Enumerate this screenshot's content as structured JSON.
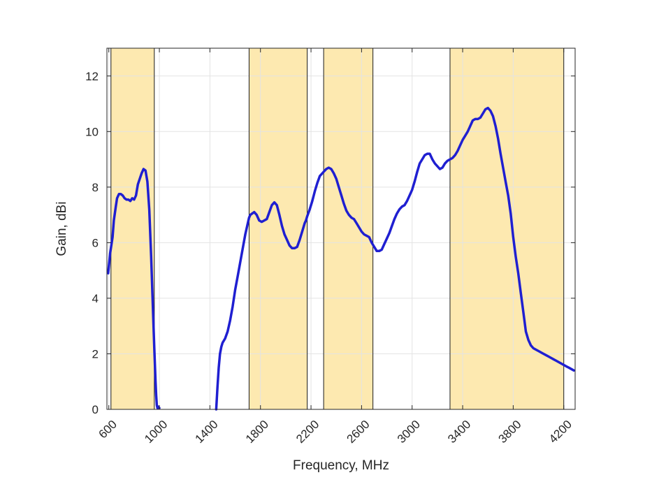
{
  "chart_data": {
    "type": "line",
    "title": "",
    "xlabel": "Frequency, MHz",
    "ylabel": "Gain, dBi",
    "xlim": [
      585,
      4290
    ],
    "ylim": [
      0,
      13
    ],
    "grid": true,
    "x_ticks": [
      600,
      1000,
      1400,
      1800,
      2200,
      2600,
      3000,
      3400,
      3800,
      4200
    ],
    "x_tick_labels": [
      "600",
      "1000",
      "1400",
      "1800",
      "2200",
      "2600",
      "3000",
      "3400",
      "3800",
      "4200"
    ],
    "y_ticks": [
      0,
      2,
      4,
      6,
      8,
      10,
      12
    ],
    "y_tick_labels": [
      "0",
      "2",
      "4",
      "6",
      "8",
      "10",
      "12"
    ],
    "colors": {
      "line": "#1f1fd1",
      "band_fill": "#fde9b0",
      "band_edge": "#1a1a1a",
      "grid": "#e3e3e3",
      "axis": "#262626"
    },
    "bands": [
      {
        "start": 617,
        "end": 960
      },
      {
        "start": 1710,
        "end": 2170
      },
      {
        "start": 2300,
        "end": 2690
      },
      {
        "start": 3300,
        "end": 4200
      }
    ],
    "series": [
      {
        "segments": [
          {
            "x": [
              595,
              610,
              620,
              630,
              640,
              655,
              665,
              680,
              695,
              710,
              725,
              740,
              755,
              770,
              785,
              800,
              815,
              830,
              845,
              860,
              875,
              890,
              905,
              920,
              935,
              950,
              960,
              970,
              975,
              980,
              985,
              990,
              995,
              1000
            ],
            "y": [
              4.9,
              5.6,
              5.9,
              6.2,
              6.8,
              7.3,
              7.6,
              7.75,
              7.75,
              7.7,
              7.6,
              7.55,
              7.55,
              7.5,
              7.6,
              7.55,
              7.7,
              8.1,
              8.3,
              8.5,
              8.65,
              8.6,
              8.2,
              7.2,
              5.5,
              3.5,
              2.2,
              1.0,
              0.5,
              0.15,
              0.05,
              0.1,
              0.05,
              0.05
            ]
          },
          {
            "x": [
              1450,
              1460,
              1470,
              1480,
              1490,
              1500,
              1520,
              1540,
              1560,
              1580,
              1600,
              1620,
              1640,
              1660,
              1680,
              1690,
              1700,
              1710,
              1720,
              1735,
              1750,
              1770,
              1790,
              1810,
              1830,
              1850,
              1870,
              1890,
              1910,
              1930,
              1950,
              1970,
              1990,
              2010,
              2030,
              2050,
              2070,
              2090,
              2110,
              2130,
              2150,
              2160,
              2170,
              2190,
              2210,
              2230,
              2250,
              2270,
              2290,
              2300,
              2320,
              2340,
              2360,
              2380,
              2400,
              2420,
              2440,
              2460,
              2480,
              2500,
              2520,
              2540,
              2560,
              2580,
              2600,
              2620,
              2640,
              2660,
              2680,
              2700,
              2720,
              2740,
              2760,
              2780,
              2800,
              2820,
              2840,
              2860,
              2880,
              2900,
              2920,
              2940,
              2960,
              2980,
              3000,
              3020,
              3040,
              3060,
              3080,
              3100,
              3120,
              3140,
              3160,
              3180,
              3200,
              3220,
              3240,
              3260,
              3280,
              3300,
              3320,
              3340,
              3360,
              3380,
              3400,
              3420,
              3440,
              3460,
              3480,
              3500,
              3520,
              3540,
              3560,
              3580,
              3600,
              3620,
              3640,
              3660,
              3680,
              3700,
              3720,
              3740,
              3760,
              3780,
              3800,
              3820,
              3840,
              3860,
              3880,
              3900,
              3920,
              3940,
              3960,
              3980,
              4000,
              4020,
              4040,
              4060,
              4080,
              4100,
              4120,
              4140,
              4160,
              4180,
              4200,
              4220,
              4240,
              4260,
              4280
            ],
            "y": [
              0.0,
              0.8,
              1.5,
              2.0,
              2.25,
              2.4,
              2.55,
              2.8,
              3.2,
              3.7,
              4.3,
              4.8,
              5.3,
              5.8,
              6.3,
              6.5,
              6.7,
              6.9,
              7.0,
              7.05,
              7.1,
              7.0,
              6.8,
              6.75,
              6.8,
              6.85,
              7.1,
              7.35,
              7.45,
              7.35,
              7.0,
              6.6,
              6.3,
              6.1,
              5.9,
              5.8,
              5.8,
              5.85,
              6.1,
              6.4,
              6.7,
              6.8,
              6.95,
              7.2,
              7.5,
              7.85,
              8.15,
              8.4,
              8.5,
              8.55,
              8.65,
              8.7,
              8.65,
              8.5,
              8.3,
              8.0,
              7.7,
              7.4,
              7.15,
              7.0,
              6.9,
              6.85,
              6.7,
              6.55,
              6.4,
              6.3,
              6.25,
              6.2,
              6.0,
              5.85,
              5.7,
              5.7,
              5.75,
              5.95,
              6.15,
              6.35,
              6.6,
              6.85,
              7.05,
              7.2,
              7.3,
              7.35,
              7.5,
              7.7,
              7.9,
              8.2,
              8.55,
              8.85,
              9.0,
              9.15,
              9.2,
              9.2,
              9.0,
              8.85,
              8.75,
              8.65,
              8.7,
              8.85,
              8.95,
              9.0,
              9.05,
              9.15,
              9.3,
              9.5,
              9.7,
              9.85,
              10.0,
              10.2,
              10.4,
              10.45,
              10.45,
              10.5,
              10.65,
              10.8,
              10.85,
              10.75,
              10.55,
              10.2,
              9.75,
              9.2,
              8.7,
              8.2,
              7.7,
              7.05,
              6.2,
              5.5,
              4.9,
              4.2,
              3.5,
              2.8,
              2.5,
              2.3,
              2.2,
              2.15,
              2.1,
              2.05,
              2.0,
              1.95,
              1.9,
              1.85,
              1.8,
              1.75,
              1.7,
              1.65,
              1.6,
              1.55,
              1.5,
              1.45,
              1.4
            ]
          }
        ]
      }
    ]
  }
}
